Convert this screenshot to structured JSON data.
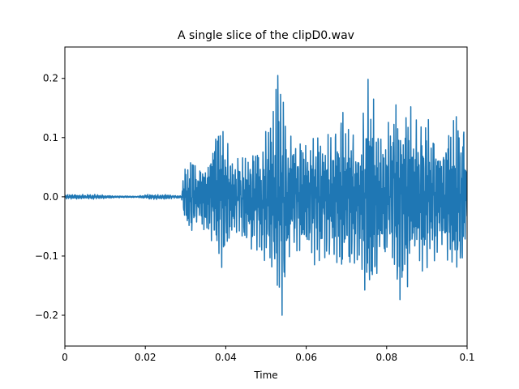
{
  "chart_data": {
    "type": "line",
    "title": "A single slice of the clipD0.wav",
    "xlabel": "Time",
    "ylabel": "",
    "xlim": [
      0,
      0.1
    ],
    "ylim": [
      -0.252,
      0.253
    ],
    "grid": false,
    "legend": "none",
    "x_ticks": [
      {
        "value": 0,
        "label": "0"
      },
      {
        "value": 0.02,
        "label": "0.02"
      },
      {
        "value": 0.04,
        "label": "0.04"
      },
      {
        "value": 0.06,
        "label": "0.06"
      },
      {
        "value": 0.08,
        "label": "0.08"
      },
      {
        "value": 0.1,
        "label": "0.1"
      }
    ],
    "y_ticks": [
      {
        "value": -0.2,
        "label": "−0.2"
      },
      {
        "value": -0.1,
        "label": "−0.1"
      },
      {
        "value": 0.0,
        "label": "0.0"
      },
      {
        "value": 0.1,
        "label": "0.1"
      },
      {
        "value": 0.2,
        "label": "0.2"
      }
    ],
    "series": [
      {
        "color": "#1f77b4",
        "envelope": [
          {
            "x": 0.0,
            "amp": 0.004
          },
          {
            "x": 0.008,
            "amp": 0.004
          },
          {
            "x": 0.012,
            "amp": 0.002
          },
          {
            "x": 0.018,
            "amp": 0.001
          },
          {
            "x": 0.021,
            "amp": 0.005
          },
          {
            "x": 0.0245,
            "amp": 0.004
          },
          {
            "x": 0.029,
            "amp": 0.002
          },
          {
            "x": 0.0295,
            "amp": 0.04
          },
          {
            "x": 0.031,
            "amp": 0.07
          },
          {
            "x": 0.033,
            "amp": 0.05
          },
          {
            "x": 0.036,
            "amp": 0.07
          },
          {
            "x": 0.0385,
            "amp": 0.13
          },
          {
            "x": 0.041,
            "amp": 0.08
          },
          {
            "x": 0.0435,
            "amp": 0.07
          },
          {
            "x": 0.0465,
            "amp": 0.09
          },
          {
            "x": 0.049,
            "amp": 0.09
          },
          {
            "x": 0.0515,
            "amp": 0.16
          },
          {
            "x": 0.0535,
            "amp": 0.23
          },
          {
            "x": 0.0555,
            "amp": 0.11
          },
          {
            "x": 0.0575,
            "amp": 0.1
          },
          {
            "x": 0.06,
            "amp": 0.09
          },
          {
            "x": 0.0625,
            "amp": 0.12
          },
          {
            "x": 0.0645,
            "amp": 0.11
          },
          {
            "x": 0.0665,
            "amp": 0.1
          },
          {
            "x": 0.0685,
            "amp": 0.15
          },
          {
            "x": 0.071,
            "amp": 0.12
          },
          {
            "x": 0.0735,
            "amp": 0.1
          },
          {
            "x": 0.0755,
            "amp": 0.22
          },
          {
            "x": 0.078,
            "amp": 0.11
          },
          {
            "x": 0.08,
            "amp": 0.11
          },
          {
            "x": 0.0825,
            "amp": 0.2
          },
          {
            "x": 0.085,
            "amp": 0.16
          },
          {
            "x": 0.0875,
            "amp": 0.14
          },
          {
            "x": 0.0905,
            "amp": 0.13
          },
          {
            "x": 0.093,
            "amp": 0.09
          },
          {
            "x": 0.0955,
            "amp": 0.11
          },
          {
            "x": 0.0985,
            "amp": 0.16
          },
          {
            "x": 0.1,
            "amp": 0.07
          }
        ]
      }
    ]
  }
}
